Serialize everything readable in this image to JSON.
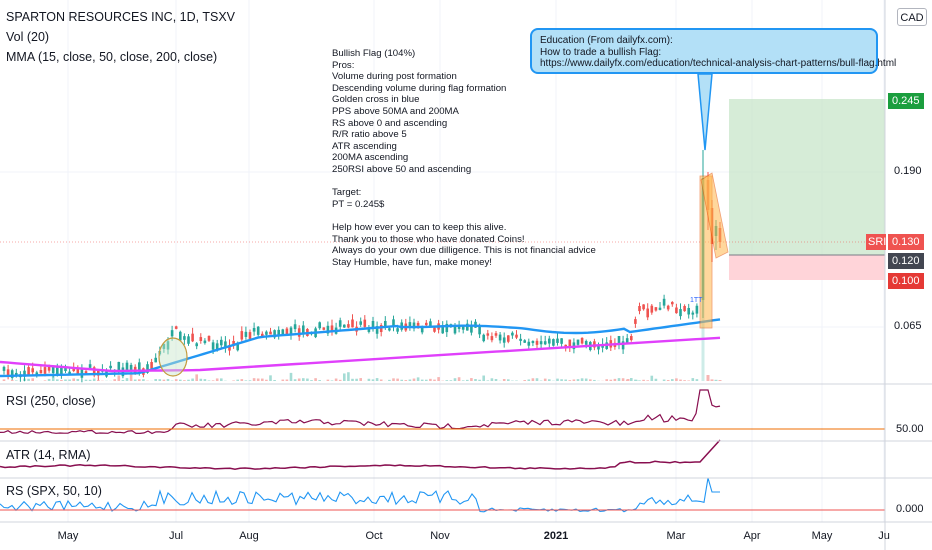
{
  "header": {
    "symbol_line": "SPARTON RESOURCES INC, 1D, TSXV",
    "vol_label": "Vol (20)",
    "mma_label": "MMA (15, close, 50, close, 200, close)",
    "currency": "CAD"
  },
  "notes": [
    "Bullish Flag (104%)",
    "Pros:",
    "Volume during post formation",
    "Descending volume during flag formation",
    "Golden cross in blue",
    "PPS above 50MA and 200MA",
    "RS above 0 and ascending",
    "R/R ratio above 5",
    "ATR ascending",
    "200MA ascending",
    "250RSI above 50 and ascending",
    "",
    "Target:",
    "PT = 0.245$",
    "",
    "Help how ever you can to keep this alive.",
    "Thank you to those who have donated Coins!",
    "Always do your own due dilligence. This is not financial advice",
    "Stay Humble, have fun, make money!"
  ],
  "callout": [
    "Education (From dailyfx.com):",
    "How to trade a bullish Flag:",
    "https://www.dailyfx.com/education/technical-analysis-chart-patterns/bull-flag.html"
  ],
  "price_axis": {
    "ticks": [
      "0.190",
      "0.065"
    ],
    "tags": {
      "target": "0.245",
      "symbol_tag": "SRI",
      "last": "0.130",
      "entry": "0.120",
      "stop": "0.100"
    }
  },
  "panels": {
    "rsi": {
      "label": "RSI (250, close)",
      "tick": "50.00"
    },
    "atr": {
      "label": "ATR (14, RMA)"
    },
    "rs": {
      "label": "RS (SPX, 50, 10)",
      "tick": "0.000"
    }
  },
  "chart_data": {
    "type": "line",
    "time_axis": [
      "May",
      "Jul",
      "Aug",
      "Oct",
      "Nov",
      "2021",
      "Mar",
      "Apr",
      "May",
      "Ju"
    ],
    "annotations": [
      "1TT"
    ],
    "colors": {
      "up": "#26a69a",
      "down": "#ef5350",
      "ma_fast": "#2196f3",
      "ma_slow": "#e040fb",
      "indicator": "#880e4f",
      "rs_line": "#2196f3",
      "target_zone": "#c8e6c9",
      "stop_zone": "#ffcdd2",
      "flag": "#ffb74d"
    }
  }
}
